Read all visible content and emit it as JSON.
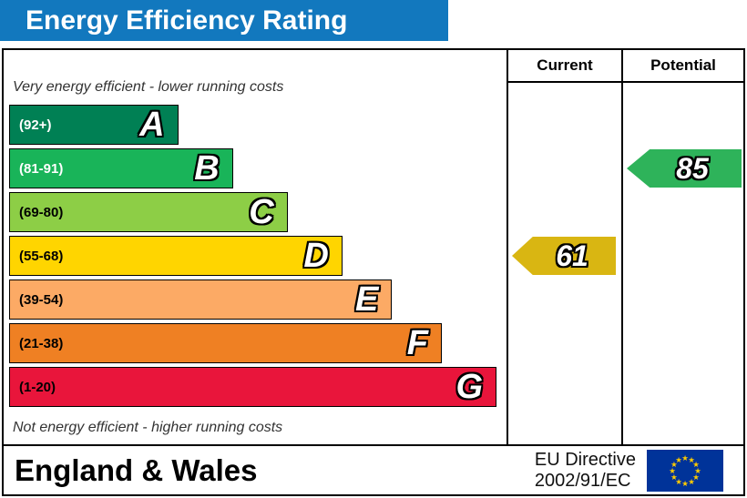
{
  "title": "Energy Efficiency Rating",
  "table": {
    "columns": {
      "current": "Current",
      "potential": "Potential"
    },
    "top_note": "Very energy efficient - lower running costs",
    "bottom_note": "Not energy efficient - higher running costs"
  },
  "chart_data": {
    "type": "bar",
    "title": "Energy Efficiency Rating",
    "categories": [
      "A",
      "B",
      "C",
      "D",
      "E",
      "F",
      "G"
    ],
    "bands": [
      {
        "letter": "A",
        "range": "(92+)",
        "color": "#008054",
        "text_color": "#ffffff",
        "width_pct": 34
      },
      {
        "letter": "B",
        "range": "(81-91)",
        "color": "#19b459",
        "text_color": "#ffffff",
        "width_pct": 45
      },
      {
        "letter": "C",
        "range": "(69-80)",
        "color": "#8dce46",
        "text_color": "#000000",
        "width_pct": 56
      },
      {
        "letter": "D",
        "range": "(55-68)",
        "color": "#ffd500",
        "text_color": "#000000",
        "width_pct": 67
      },
      {
        "letter": "E",
        "range": "(39-54)",
        "color": "#fcaa65",
        "text_color": "#000000",
        "width_pct": 77
      },
      {
        "letter": "F",
        "range": "(21-38)",
        "color": "#ef8023",
        "text_color": "#000000",
        "width_pct": 87
      },
      {
        "letter": "G",
        "range": "(1-20)",
        "color": "#e9153b",
        "text_color": "#000000",
        "width_pct": 98
      }
    ],
    "current": {
      "label": "Current",
      "value": "61",
      "band": "D",
      "color": "#d9b612"
    },
    "potential": {
      "label": "Potential",
      "value": "85",
      "band": "B",
      "color": "#2eb35a"
    },
    "legend_position": "none",
    "grid": false
  },
  "footer": {
    "region": "England & Wales",
    "directive_line1": "EU Directive",
    "directive_line2": "2002/91/EC"
  },
  "colors": {
    "title_bg": "#1278be",
    "title_text": "#ffffff",
    "eu_flag_bg": "#003399",
    "eu_flag_stars": "#ffcc00"
  }
}
